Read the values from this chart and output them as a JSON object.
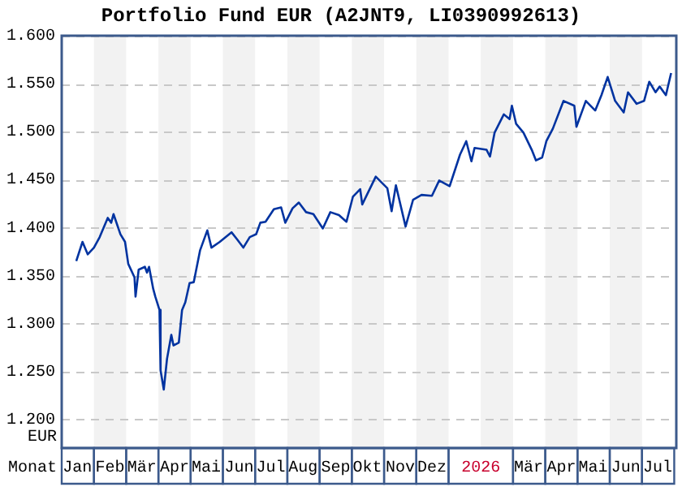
{
  "chart_data": {
    "type": "line",
    "title": "Portfolio Fund EUR (A2JNT9, LI0390992613)",
    "xlabel": "Monat",
    "ylabel": "EUR",
    "x": [
      "2025-01-15",
      "2025-01-21",
      "2025-01-26",
      "2025-02-01",
      "2025-02-06",
      "2025-02-13",
      "2025-02-16",
      "2025-02-18",
      "2025-02-24",
      "2025-02-28",
      "2025-03-03",
      "2025-03-09",
      "2025-03-10",
      "2025-03-13",
      "2025-03-19",
      "2025-03-21",
      "2025-03-23",
      "2025-03-27",
      "2025-03-29",
      "2025-04-02",
      "2025-04-03",
      "2025-04-06",
      "2025-04-09",
      "2025-04-13",
      "2025-04-15",
      "2025-04-20",
      "2025-04-23",
      "2025-04-26",
      "2025-04-30",
      "2025-05-04",
      "2025-05-10",
      "2025-05-17",
      "2025-05-21",
      "2025-05-29",
      "2025-06-09",
      "2025-06-14",
      "2025-06-20",
      "2025-06-26",
      "2025-07-02",
      "2025-07-06",
      "2025-07-11",
      "2025-07-19",
      "2025-07-26",
      "2025-07-30",
      "2025-08-06",
      "2025-08-12",
      "2025-08-19",
      "2025-08-26",
      "2025-09-04",
      "2025-09-11",
      "2025-09-19",
      "2025-09-26",
      "2025-10-02",
      "2025-10-09",
      "2025-10-11",
      "2025-10-24",
      "2025-11-04",
      "2025-11-08",
      "2025-11-12",
      "2025-11-21",
      "2025-11-28",
      "2025-12-06",
      "2025-12-16",
      "2025-12-23",
      "2026-01-02",
      "2026-01-12",
      "2026-01-18",
      "2026-01-23",
      "2026-01-26",
      "2026-02-06",
      "2026-02-09",
      "2026-02-13",
      "2026-02-21",
      "2026-02-26",
      "2026-02-28",
      "2026-03-04",
      "2026-03-11",
      "2026-03-19",
      "2026-03-23",
      "2026-03-29",
      "2026-04-02",
      "2026-04-08",
      "2026-04-18",
      "2026-04-28",
      "2026-04-30",
      "2026-05-09",
      "2026-05-18",
      "2026-05-24",
      "2026-05-30",
      "2026-06-06",
      "2026-06-14",
      "2026-06-18",
      "2026-06-26",
      "2026-07-03",
      "2026-07-08",
      "2026-07-14",
      "2026-07-18",
      "2026-07-24",
      "2026-07-29"
    ],
    "series": [
      {
        "color": "#0033a0",
        "values": [
          1.365,
          1.385,
          1.372,
          1.379,
          1.39,
          1.41,
          1.405,
          1.414,
          1.393,
          1.385,
          1.362,
          1.348,
          1.328,
          1.356,
          1.359,
          1.353,
          1.359,
          1.336,
          1.328,
          1.314,
          1.251,
          1.231,
          1.263,
          1.288,
          1.277,
          1.28,
          1.314,
          1.322,
          1.342,
          1.343,
          1.376,
          1.397,
          1.379,
          1.385,
          1.395,
          1.388,
          1.379,
          1.39,
          1.393,
          1.405,
          1.406,
          1.419,
          1.421,
          1.405,
          1.42,
          1.426,
          1.416,
          1.414,
          1.399,
          1.416,
          1.413,
          1.406,
          1.432,
          1.44,
          1.424,
          1.453,
          1.441,
          1.417,
          1.444,
          1.401,
          1.429,
          1.434,
          1.433,
          1.449,
          1.443,
          1.476,
          1.49,
          1.469,
          1.483,
          1.481,
          1.474,
          1.499,
          1.518,
          1.513,
          1.527,
          1.508,
          1.499,
          1.481,
          1.47,
          1.473,
          1.49,
          1.503,
          1.532,
          1.527,
          1.505,
          1.532,
          1.522,
          1.538,
          1.557,
          1.532,
          1.52,
          1.541,
          1.529,
          1.532,
          1.552,
          1.541,
          1.547,
          1.538,
          1.561
        ]
      }
    ],
    "xlim": [
      "2025-01-01",
      "2026-08-03"
    ],
    "xticks": [
      {
        "value": "2025-01-16",
        "label": "Jan"
      },
      {
        "value": "2025-02-15",
        "label": "Feb"
      },
      {
        "value": "2025-03-16",
        "label": "Mär"
      },
      {
        "value": "2025-04-16",
        "label": "Apr"
      },
      {
        "value": "2025-05-16",
        "label": "Mai"
      },
      {
        "value": "2025-06-16",
        "label": "Jun"
      },
      {
        "value": "2025-07-16",
        "label": "Jul"
      },
      {
        "value": "2025-08-16",
        "label": "Aug"
      },
      {
        "value": "2025-09-16",
        "label": "Sep"
      },
      {
        "value": "2025-10-16",
        "label": "Okt"
      },
      {
        "value": "2025-11-16",
        "label": "Nov"
      },
      {
        "value": "2025-12-16",
        "label": "Dez"
      },
      {
        "value": "2026-02-01",
        "label": "2026"
      },
      {
        "value": "2026-03-16",
        "label": "Mär"
      },
      {
        "value": "2026-04-16",
        "label": "Apr"
      },
      {
        "value": "2026-05-16",
        "label": "Mai"
      },
      {
        "value": "2026-06-16",
        "label": "Jun"
      },
      {
        "value": "2026-07-16",
        "label": "Jul"
      }
    ],
    "ylim": [
      1.17,
      1.6
    ],
    "yticks": [
      {
        "value": 1.2,
        "label": "1.200"
      },
      {
        "value": 1.25,
        "label": "1.250"
      },
      {
        "value": 1.3,
        "label": "1.300"
      },
      {
        "value": 1.35,
        "label": "1.350"
      },
      {
        "value": 1.4,
        "label": "1.400"
      },
      {
        "value": 1.45,
        "label": "1.450"
      },
      {
        "value": 1.5,
        "label": "1.500"
      },
      {
        "value": 1.55,
        "label": "1.550"
      },
      {
        "value": 1.6,
        "label": "1.600"
      }
    ],
    "bands": [
      {
        "axis": "x",
        "from": "2025-02-01",
        "to": "2025-03-01",
        "color": "#f2f2f2"
      },
      {
        "axis": "x",
        "from": "2025-04-01",
        "to": "2025-05-01",
        "color": "#f2f2f2"
      },
      {
        "axis": "x",
        "from": "2025-06-01",
        "to": "2025-07-01",
        "color": "#f2f2f2"
      },
      {
        "axis": "x",
        "from": "2025-08-01",
        "to": "2025-09-01",
        "color": "#f2f2f2"
      },
      {
        "axis": "x",
        "from": "2025-10-01",
        "to": "2025-11-01",
        "color": "#f2f2f2"
      },
      {
        "axis": "x",
        "from": "2025-12-01",
        "to": "2026-01-01",
        "color": "#f2f2f2"
      },
      {
        "axis": "x",
        "from": "2026-02-01",
        "to": "2026-03-01",
        "color": "#f2f2f2"
      },
      {
        "axis": "x",
        "from": "2026-04-01",
        "to": "2026-05-01",
        "color": "#f2f2f2"
      },
      {
        "axis": "x",
        "from": "2026-06-01",
        "to": "2026-07-01",
        "color": "#f2f2f2"
      }
    ],
    "grid": "y",
    "legend": false,
    "marker": "none",
    "line_style": "solid"
  }
}
